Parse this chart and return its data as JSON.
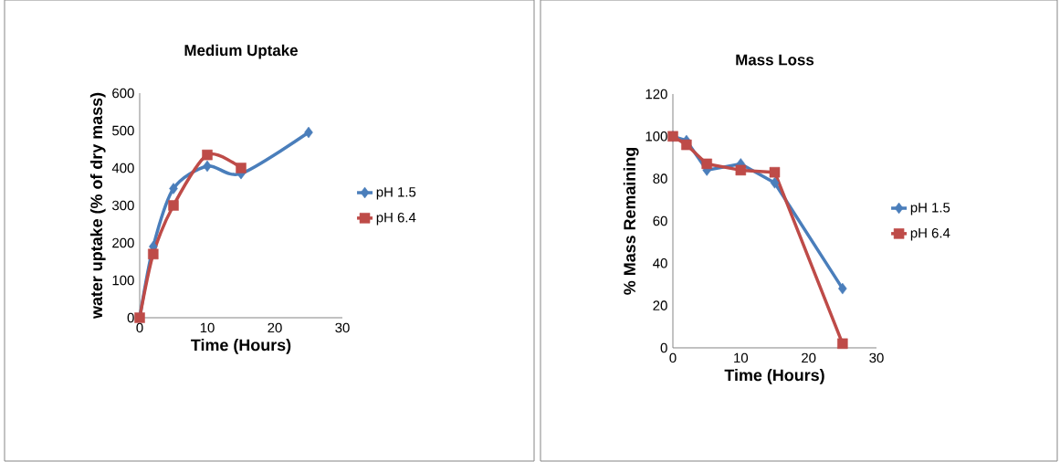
{
  "chart_data": [
    {
      "type": "line",
      "title": "Medium Uptake",
      "xlabel": "Time (Hours)",
      "ylabel": "water uptake (% of dry mass)",
      "xlim": [
        0,
        30
      ],
      "xticks": [
        0,
        10,
        20,
        30
      ],
      "ylim": [
        0,
        600
      ],
      "yticks": [
        0,
        100,
        200,
        300,
        400,
        500,
        600
      ],
      "legend": "right",
      "grid": false,
      "series": [
        {
          "name": "pH 1.5",
          "color": "#4a7ebb",
          "marker": "diamond",
          "x": [
            0,
            2,
            5,
            10,
            15,
            25
          ],
          "values": [
            0,
            190,
            345,
            405,
            385,
            495
          ]
        },
        {
          "name": "pH 6.4",
          "color": "#be4b48",
          "marker": "square",
          "x": [
            0,
            2,
            5,
            10,
            15
          ],
          "values": [
            0,
            170,
            300,
            435,
            400
          ]
        }
      ]
    },
    {
      "type": "line",
      "title": "Mass Loss",
      "xlabel": "Time (Hours)",
      "ylabel": "% Mass Remaining",
      "xlim": [
        0,
        30
      ],
      "xticks": [
        0,
        10,
        20,
        30
      ],
      "ylim": [
        0,
        120
      ],
      "yticks": [
        0,
        20,
        40,
        60,
        80,
        100,
        120
      ],
      "legend": "right",
      "grid": false,
      "series": [
        {
          "name": "pH 1.5",
          "color": "#4a7ebb",
          "marker": "diamond",
          "x": [
            0,
            2,
            5,
            10,
            15,
            25
          ],
          "values": [
            100,
            98,
            84,
            87,
            78,
            28
          ]
        },
        {
          "name": "pH 6.4",
          "color": "#be4b48",
          "marker": "square",
          "x": [
            0,
            2,
            5,
            10,
            15,
            25
          ],
          "values": [
            100,
            96,
            87,
            84,
            83,
            2
          ]
        }
      ]
    }
  ]
}
